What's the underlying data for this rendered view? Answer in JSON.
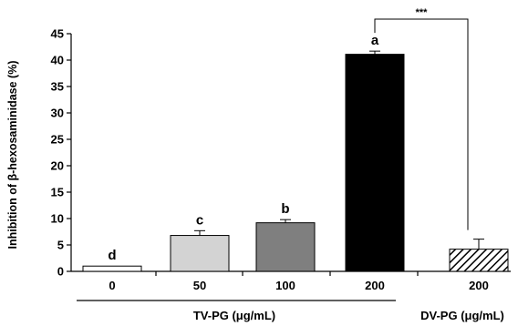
{
  "chart_data": {
    "type": "bar",
    "title": "",
    "xlabel": "",
    "ylabel": "Inhibition of β-hexosaminidase (%)",
    "ylim": [
      0,
      45
    ],
    "yticks": [
      0,
      5,
      10,
      15,
      20,
      25,
      30,
      35,
      40,
      45
    ],
    "grid": false,
    "categories": [
      "0",
      "50",
      "100",
      "200",
      "200"
    ],
    "values": [
      1.0,
      6.8,
      9.2,
      41.1,
      4.2
    ],
    "errors": [
      0.0,
      0.9,
      0.6,
      0.6,
      1.9
    ],
    "significance_letters": [
      "d",
      "c",
      "b",
      "a",
      ""
    ],
    "bar_fills": [
      "#ffffff",
      "#d3d3d3",
      "#7f7f7f",
      "#000000",
      "hatched"
    ],
    "groups": [
      {
        "label": "TV-PG (μg/mL)",
        "categories": [
          "0",
          "50",
          "100",
          "200"
        ]
      },
      {
        "label": "DV-PG (μg/mL)",
        "categories": [
          "200"
        ]
      }
    ],
    "comparison": {
      "between": [
        "200",
        "200"
      ],
      "label": "***"
    }
  }
}
